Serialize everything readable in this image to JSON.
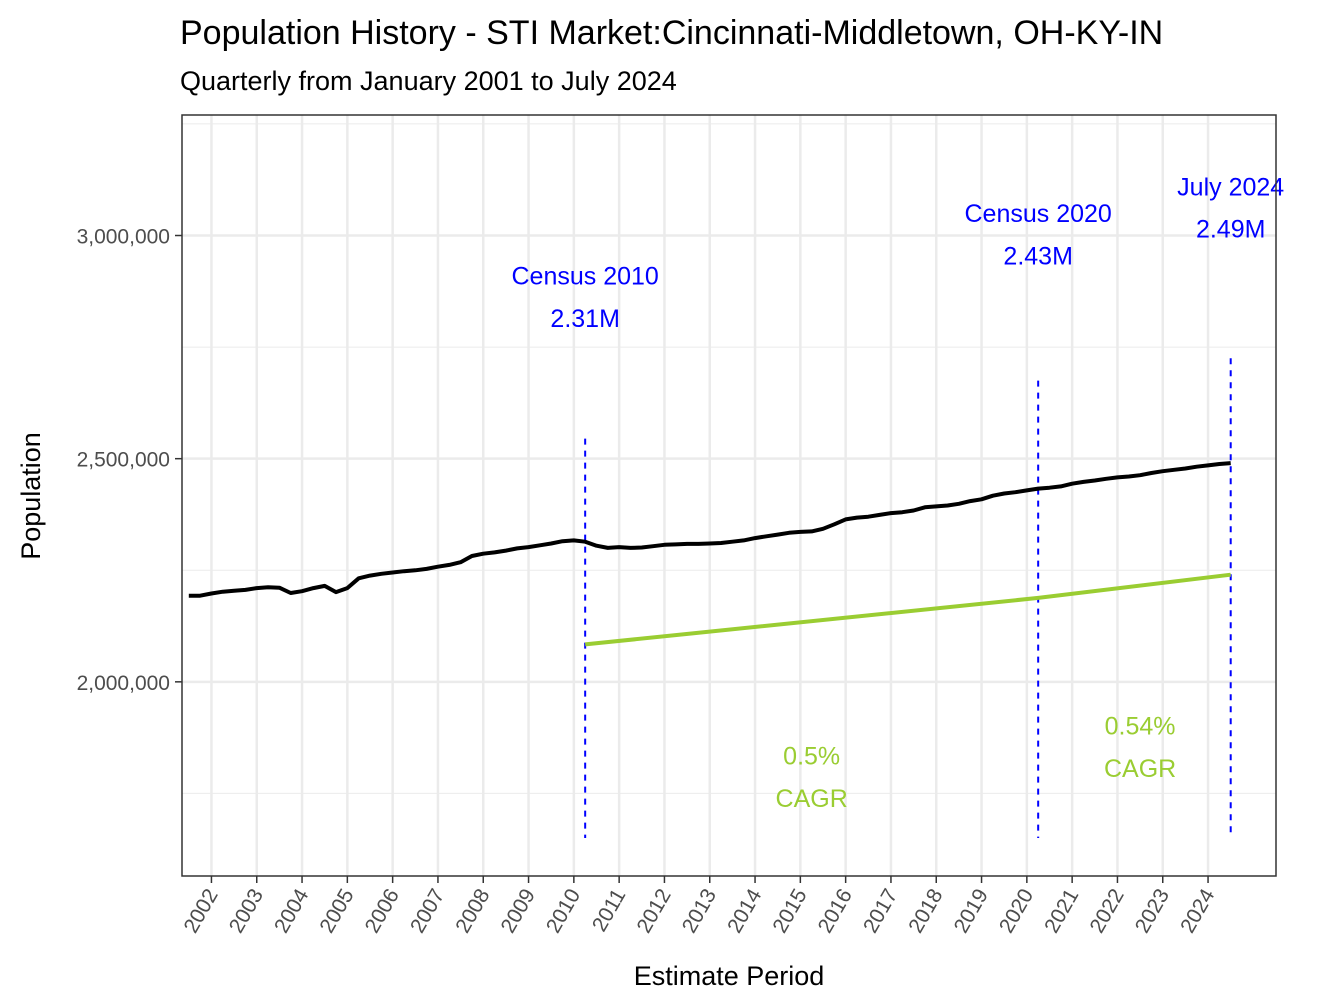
{
  "chart_data": {
    "type": "line",
    "title": "Population History - STI Market:Cincinnati-Middletown, OH-KY-IN",
    "subtitle": "Quarterly from January 2001 to July 2024",
    "xlabel": "Estimate Period",
    "ylabel": "Population",
    "xlim": [
      2001.35,
      2025.5
    ],
    "ylim": [
      1565000,
      3270000
    ],
    "yticks": [
      {
        "value": 2000000,
        "label": "2,000,000"
      },
      {
        "value": 2500000,
        "label": "2,500,000"
      },
      {
        "value": 3000000,
        "label": "3,000,000"
      }
    ],
    "yminor": [
      1750000,
      2250000,
      2750000,
      3250000
    ],
    "xticks": [
      "2002",
      "2003",
      "2004",
      "2005",
      "2006",
      "2007",
      "2008",
      "2009",
      "2010",
      "2011",
      "2012",
      "2013",
      "2014",
      "2015",
      "2016",
      "2017",
      "2018",
      "2019",
      "2020",
      "2021",
      "2022",
      "2023",
      "2024"
    ],
    "grid": true,
    "colors": {
      "population": "#000000",
      "trend": "#9acd32",
      "annotation": "#0000ff",
      "grid": "#ebebeb"
    },
    "series": [
      {
        "name": "Population",
        "points": [
          [
            2001.5,
            2193000
          ],
          [
            2001.75,
            2193000
          ],
          [
            2002.0,
            2198000
          ],
          [
            2002.25,
            2202000
          ],
          [
            2002.5,
            2204000
          ],
          [
            2002.75,
            2206000
          ],
          [
            2003.0,
            2210000
          ],
          [
            2003.25,
            2212000
          ],
          [
            2003.5,
            2211000
          ],
          [
            2003.75,
            2199000
          ],
          [
            2004.0,
            2203000
          ],
          [
            2004.25,
            2210000
          ],
          [
            2004.5,
            2215000
          ],
          [
            2004.75,
            2201000
          ],
          [
            2005.0,
            2210000
          ],
          [
            2005.25,
            2232000
          ],
          [
            2005.5,
            2238000
          ],
          [
            2005.75,
            2242000
          ],
          [
            2006.0,
            2245000
          ],
          [
            2006.25,
            2248000
          ],
          [
            2006.5,
            2250000
          ],
          [
            2006.75,
            2253000
          ],
          [
            2007.0,
            2258000
          ],
          [
            2007.25,
            2262000
          ],
          [
            2007.5,
            2268000
          ],
          [
            2007.75,
            2282000
          ],
          [
            2008.0,
            2287000
          ],
          [
            2008.25,
            2290000
          ],
          [
            2008.5,
            2294000
          ],
          [
            2008.75,
            2299000
          ],
          [
            2009.0,
            2302000
          ],
          [
            2009.25,
            2306000
          ],
          [
            2009.5,
            2310000
          ],
          [
            2009.75,
            2315000
          ],
          [
            2010.0,
            2317000
          ],
          [
            2010.25,
            2314000
          ],
          [
            2010.5,
            2305000
          ],
          [
            2010.75,
            2300000
          ],
          [
            2011.0,
            2302000
          ],
          [
            2011.25,
            2300000
          ],
          [
            2011.5,
            2301000
          ],
          [
            2011.75,
            2304000
          ],
          [
            2012.0,
            2307000
          ],
          [
            2012.25,
            2308000
          ],
          [
            2012.5,
            2309000
          ],
          [
            2012.75,
            2309000
          ],
          [
            2013.0,
            2310000
          ],
          [
            2013.25,
            2311000
          ],
          [
            2013.5,
            2314000
          ],
          [
            2013.75,
            2317000
          ],
          [
            2014.0,
            2322000
          ],
          [
            2014.25,
            2326000
          ],
          [
            2014.5,
            2330000
          ],
          [
            2014.75,
            2334000
          ],
          [
            2015.0,
            2336000
          ],
          [
            2015.25,
            2337000
          ],
          [
            2015.5,
            2343000
          ],
          [
            2015.75,
            2353000
          ],
          [
            2016.0,
            2364000
          ],
          [
            2016.25,
            2368000
          ],
          [
            2016.5,
            2370000
          ],
          [
            2016.75,
            2374000
          ],
          [
            2017.0,
            2378000
          ],
          [
            2017.25,
            2380000
          ],
          [
            2017.5,
            2384000
          ],
          [
            2017.75,
            2391000
          ],
          [
            2018.0,
            2393000
          ],
          [
            2018.25,
            2395000
          ],
          [
            2018.5,
            2399000
          ],
          [
            2018.75,
            2405000
          ],
          [
            2019.0,
            2409000
          ],
          [
            2019.25,
            2417000
          ],
          [
            2019.5,
            2422000
          ],
          [
            2019.75,
            2425000
          ],
          [
            2020.0,
            2429000
          ],
          [
            2020.25,
            2433000
          ],
          [
            2020.5,
            2435000
          ],
          [
            2020.75,
            2438000
          ],
          [
            2021.0,
            2444000
          ],
          [
            2021.25,
            2448000
          ],
          [
            2021.5,
            2451000
          ],
          [
            2021.75,
            2455000
          ],
          [
            2022.0,
            2458000
          ],
          [
            2022.25,
            2460000
          ],
          [
            2022.5,
            2463000
          ],
          [
            2022.75,
            2468000
          ],
          [
            2023.0,
            2472000
          ],
          [
            2023.25,
            2475000
          ],
          [
            2023.5,
            2478000
          ],
          [
            2023.75,
            2482000
          ],
          [
            2024.0,
            2485000
          ],
          [
            2024.25,
            2488000
          ],
          [
            2024.5,
            2490000
          ]
        ]
      },
      {
        "name": "CAGR trend",
        "points": [
          [
            2010.25,
            2084000
          ],
          [
            2020.25,
            2188000
          ],
          [
            2024.5,
            2240000
          ]
        ]
      }
    ],
    "vlines": [
      {
        "x": 2010.25,
        "y_top": 2545000
      },
      {
        "x": 2020.25,
        "y_top": 2675000
      },
      {
        "x": 2024.5,
        "y_top": 2725000
      }
    ],
    "annotations": [
      {
        "id": "census-2010",
        "line1": "Census 2010",
        "line2": "2.31M",
        "color": "blue",
        "x": 2010.25,
        "y1": 2890000,
        "y2": 2795000
      },
      {
        "id": "census-2020",
        "line1": "Census 2020",
        "line2": "2.43M",
        "color": "blue",
        "x": 2020.25,
        "y1": 3030000,
        "y2": 2935000
      },
      {
        "id": "july-2024",
        "line1": "July 2024",
        "line2": "2.49M",
        "color": "blue",
        "x": 2024.5,
        "y1": 3090000,
        "y2": 2995000
      },
      {
        "id": "cagr-2010-2020",
        "line1": "0.5%",
        "line2": "CAGR",
        "color": "green",
        "x": 2015.25,
        "y1": 1815000,
        "y2": 1720000
      },
      {
        "id": "cagr-2020-2024",
        "line1": "0.54%",
        "line2": "CAGR",
        "color": "green",
        "x": 2022.5,
        "y1": 1882000,
        "y2": 1787000
      }
    ]
  }
}
